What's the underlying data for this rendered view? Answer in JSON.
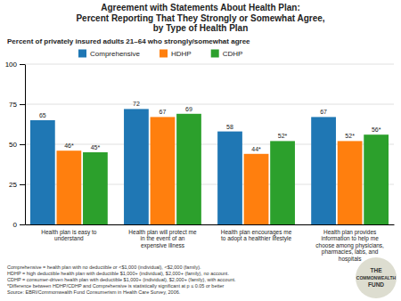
{
  "chart_data": {
    "type": "bar",
    "title": "Agreement with Statements About Health Plan:\nPercent Reporting That They Strongly or Somewhat Agree,\nby Type of Health Plan",
    "subtitle": "Percent of privately insured adults 21–64 who strongly/somewhat agree",
    "categories": [
      "Health plan is easy to\nunderstand",
      "Health plan will protect me\nin the event of an\nexpensive illness",
      "Health plan encourages me\nto adopt a healthier lifestyle",
      "Health plan provides\ninformation to help me\nchoose among physicians,\npharmacies, labs, and\nhospitals"
    ],
    "series": [
      {
        "name": "Comprehensive",
        "values": [
          65,
          72,
          58,
          67
        ]
      },
      {
        "name": "HDHP",
        "values": [
          46,
          67,
          44,
          52
        ],
        "value_labels": [
          "46*",
          "67",
          "44*",
          "52*"
        ]
      },
      {
        "name": "CDHP",
        "values": [
          45,
          69,
          52,
          56
        ],
        "value_labels": [
          "45*",
          "69",
          "52*",
          "56*"
        ]
      }
    ],
    "ylim": [
      0,
      100
    ],
    "yticks": [
      0,
      25,
      50,
      75,
      100
    ],
    "grid": true,
    "data_labels": true,
    "footnotes": [
      "Comprehensive = health plan with no deductible or <$1,000 (individual), <$2,000 (family).",
      "HDHP = high deductible health plan with deductible $1,000+ (individual), $2,000+ (family), no account.",
      "CDHP = consumer-driven health plan with deductible $1,000+ (individual), $2,000+ (family), with account.",
      "*Difference between HDHP/CDHP and Comprehensive is statistically significant at p ≤ 0.05 or better",
      "Source: EBRI/Commonwealth Fund Consumerism in Health Care Survey, 2006."
    ],
    "annotations": [
      "THE",
      "COMMONWEALTH",
      "FUND"
    ]
  }
}
